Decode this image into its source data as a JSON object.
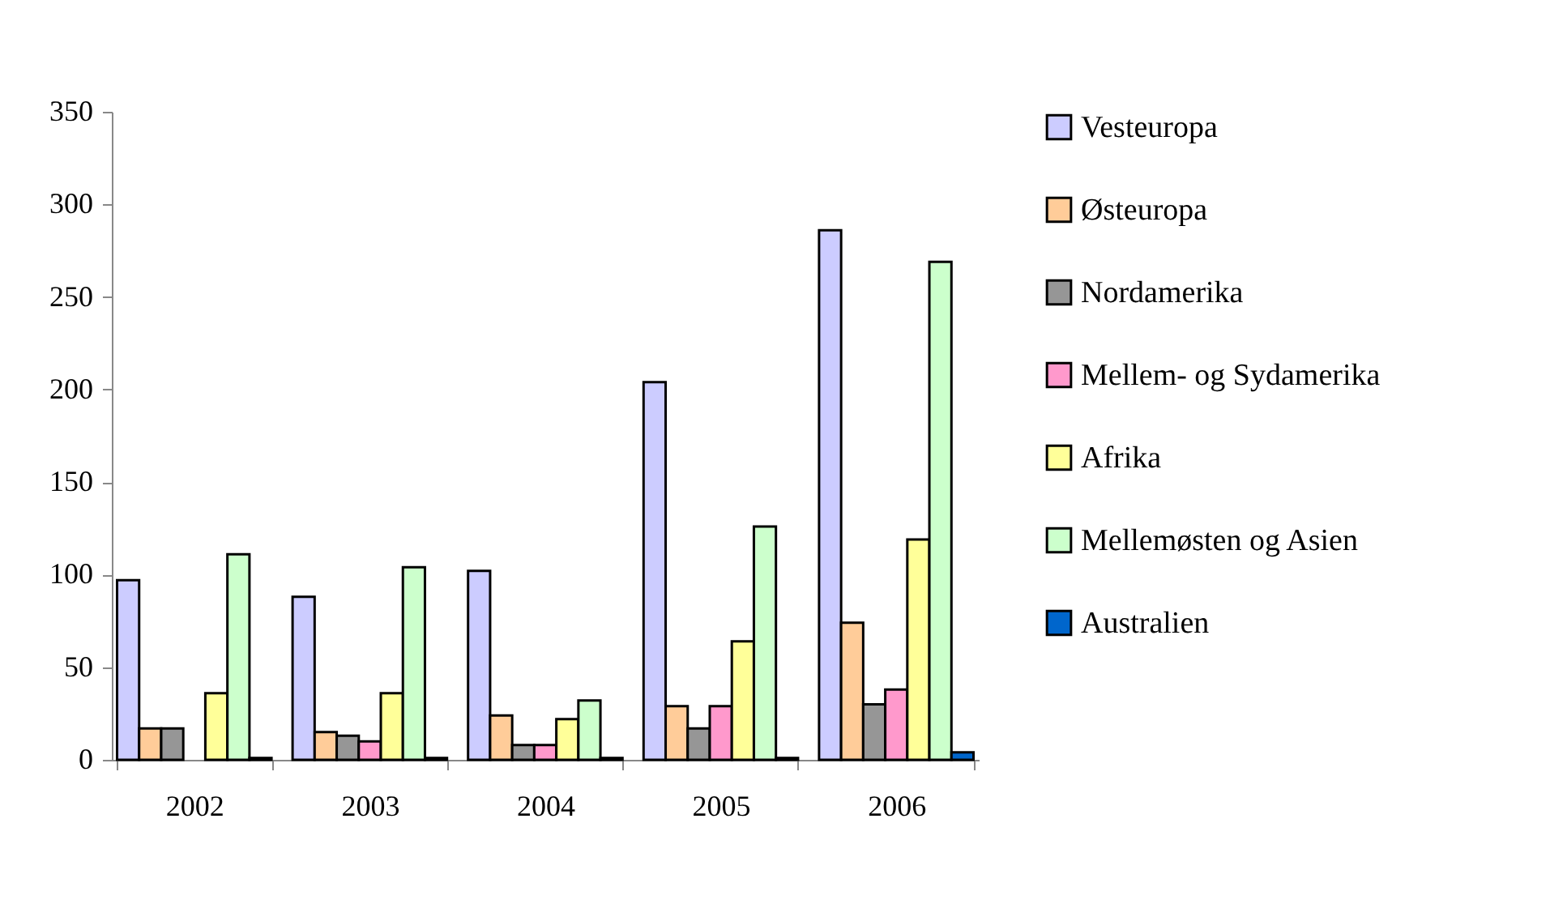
{
  "chart_data": {
    "type": "bar",
    "categories": [
      "2002",
      "2003",
      "2004",
      "2005",
      "2006"
    ],
    "series": [
      {
        "name": "Vesteuropa",
        "color": "#ccccff",
        "values": [
          97,
          88,
          102,
          204,
          286
        ]
      },
      {
        "name": "Østeuropa",
        "color": "#ffcc99",
        "values": [
          17,
          15,
          24,
          29,
          74
        ]
      },
      {
        "name": "Nordamerika",
        "color": "#969696",
        "values": [
          17,
          13,
          8,
          17,
          30
        ]
      },
      {
        "name": "Mellem- og Sydamerika",
        "color": "#ff99cc",
        "values": [
          null,
          10,
          8,
          29,
          38
        ]
      },
      {
        "name": "Afrika",
        "color": "#ffff99",
        "values": [
          36,
          36,
          22,
          64,
          119
        ]
      },
      {
        "name": "Mellemøsten og Asien",
        "color": "#ccffcc",
        "values": [
          111,
          104,
          32,
          126,
          269
        ]
      },
      {
        "name": "Australien",
        "color": "#0066cc",
        "values": [
          1,
          1,
          1,
          1,
          4
        ]
      }
    ],
    "ylim": [
      0,
      350
    ],
    "yticks": [
      0,
      50,
      100,
      150,
      200,
      250,
      300,
      350
    ],
    "grid": false,
    "legend": "right"
  }
}
